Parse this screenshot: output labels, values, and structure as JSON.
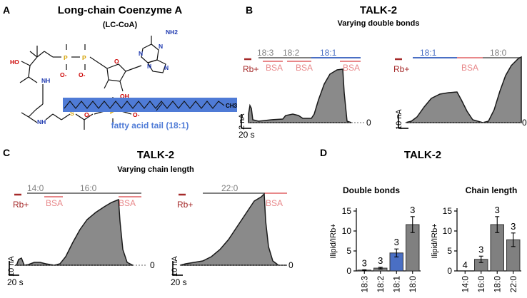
{
  "colors": {
    "rb": "#a52a2a",
    "bsa": "#e8888a",
    "c181": "#4a6fc4",
    "grey": "#808080",
    "trace_fill": "#8a8a8a",
    "trace_line": "#1a1a1a",
    "chem_red": "#cc0000",
    "chem_blue": "#1f3ab0",
    "chem_orange": "#d4a000",
    "tail_fill": "#4f7bd6"
  },
  "panelA": {
    "letter": "A",
    "title": "Long-chain Coenzyme A",
    "subtitle": "(LC-CoA)",
    "tail_caption": "fatty acid tail (18:1)",
    "atoms": {
      "nh2": "NH2",
      "n1": "N",
      "n2": "N",
      "n3": "N",
      "n4": "N",
      "ho": "HO",
      "oh": "OH",
      "o_ring": "O",
      "p1": "P",
      "p2": "P",
      "p3": "P",
      "s": "S",
      "nh1": "NH",
      "nh2b": "NH",
      "ch3": "CH3",
      "o_minus1": "O-",
      "o_minus2": "O-",
      "o_minus3": "O-",
      "o_minus4": "O-"
    }
  },
  "panelB": {
    "letter": "B",
    "title": "TALK-2",
    "subtitle": "Varying double bonds",
    "trace1": {
      "rb": "Rb+",
      "labels": [
        "18:3",
        "18:2",
        "18:1"
      ],
      "bsa": [
        "BSA",
        "BSA",
        "BSA"
      ],
      "scale_y": "2 nA",
      "scale_x": "20 s",
      "zero": "0"
    },
    "trace2": {
      "rb": "Rb+",
      "labels": [
        "18:1",
        "18:0"
      ],
      "bsa": [
        "BSA"
      ],
      "scale_y": "10 nA",
      "zero": "0"
    }
  },
  "panelC": {
    "letter": "C",
    "title": "TALK-2",
    "subtitle": "Varying chain length",
    "trace1": {
      "rb": "Rb+",
      "labels": [
        "14:0",
        "16:0"
      ],
      "bsa": [
        "BSA",
        "BSA"
      ],
      "scale_y": "10 nA",
      "scale_x": "20 s",
      "zero": "0"
    },
    "trace2": {
      "rb": "Rb+",
      "labels": [
        "22:0"
      ],
      "bsa": [
        "BSA"
      ],
      "scale_y": "10 nA",
      "scale_x": "20 s",
      "zero": "0"
    }
  },
  "panelD": {
    "letter": "D",
    "title": "TALK-2",
    "ylabel": "Ilipid/IRb+",
    "chart_data": [
      {
        "type": "bar",
        "title": "Double bonds",
        "categories": [
          "18:3",
          "18:2",
          "18:1",
          "18:0"
        ],
        "values": [
          0.2,
          0.7,
          4.5,
          11.6
        ],
        "errors": [
          0.1,
          0.2,
          1.0,
          2.0
        ],
        "n_labels": [
          "3",
          "3",
          "3",
          "3"
        ],
        "bar_colors": [
          "#808080",
          "#808080",
          "#4a6fc4",
          "#808080"
        ],
        "ylim": [
          0,
          15
        ],
        "yticks": [
          "0",
          "5",
          "10",
          "15"
        ]
      },
      {
        "type": "bar",
        "title": "Chain length",
        "categories": [
          "14:0",
          "16:0",
          "18:0",
          "22:0"
        ],
        "values": [
          0.0,
          2.9,
          11.6,
          7.8
        ],
        "errors": [
          0.0,
          0.8,
          2.0,
          1.7
        ],
        "n_labels": [
          "4",
          "3",
          "3",
          "3"
        ],
        "bar_colors": [
          "#808080",
          "#808080",
          "#808080",
          "#808080"
        ],
        "ylim": [
          0,
          15
        ],
        "yticks": [
          "0",
          "5",
          "10",
          "15"
        ]
      }
    ]
  }
}
